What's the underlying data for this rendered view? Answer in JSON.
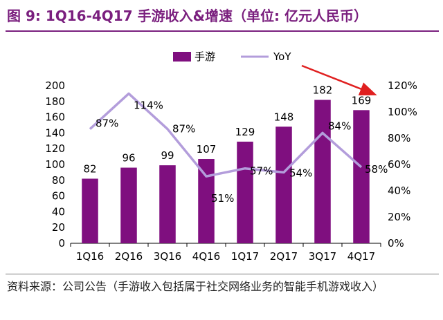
{
  "title": "图 9: 1Q16-4Q17  手游收入&增速（单位: 亿元人民币）",
  "source": "资料来源：公司公告（手游收入包括属于社交网络业务的智能手机游戏收入）",
  "colors": {
    "title": "#7a1f7e",
    "bar": "#7f0f7f",
    "line": "#b39ddb",
    "arrow": "#e02020",
    "text": "#000000"
  },
  "chart_data": {
    "type": "bar+line",
    "categories": [
      "1Q16",
      "2Q16",
      "3Q16",
      "4Q16",
      "1Q17",
      "2Q17",
      "3Q17",
      "4Q17"
    ],
    "series": [
      {
        "name": "手游",
        "type": "bar",
        "axis": "left",
        "values": [
          82,
          96,
          99,
          107,
          129,
          148,
          182,
          169
        ],
        "labels": [
          "82",
          "96",
          "99",
          "107",
          "129",
          "148",
          "182",
          "169"
        ]
      },
      {
        "name": "YoY",
        "type": "line",
        "axis": "right",
        "values": [
          87,
          114,
          87,
          51,
          57,
          54,
          84,
          58
        ],
        "labels": [
          "87%",
          "114%",
          "87%",
          "51%",
          "57%",
          "54%",
          "84%",
          "58%"
        ]
      }
    ],
    "left_axis": {
      "ylim": [
        0,
        200
      ],
      "ticks": [
        "0",
        "20",
        "40",
        "60",
        "80",
        "100",
        "120",
        "140",
        "160",
        "180",
        "200"
      ]
    },
    "right_axis": {
      "ylim": [
        0,
        120
      ],
      "ticks": [
        "0%",
        "20%",
        "40%",
        "60%",
        "80%",
        "100%",
        "120%"
      ]
    },
    "legend": {
      "position": "top-center"
    },
    "annotation": "red arrow pointing to right axis"
  }
}
